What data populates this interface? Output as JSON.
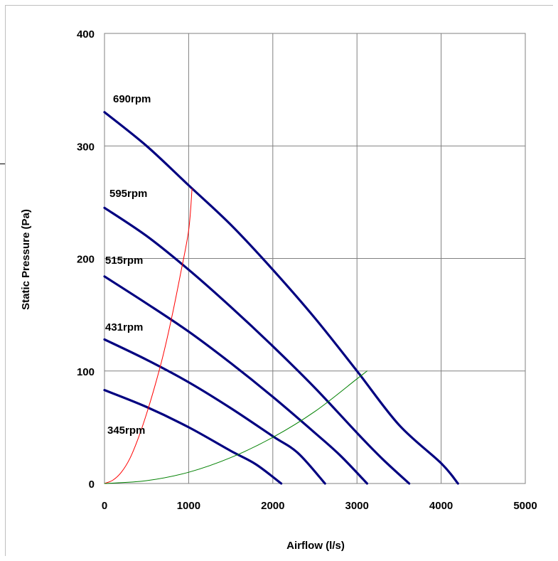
{
  "chart_data": {
    "type": "line",
    "xlabel": "Airflow (l/s)",
    "ylabel": "Static Pressure (Pa)",
    "xlim": [
      0,
      5000
    ],
    "ylim": [
      0,
      400
    ],
    "x_ticks": [
      0,
      1000,
      2000,
      3000,
      4000,
      5000
    ],
    "y_ticks": [
      0,
      100,
      200,
      300,
      400
    ],
    "grid": true,
    "legend": "none",
    "series": [
      {
        "name": "690rpm",
        "label": "690rpm",
        "color": "#000080",
        "points": [
          [
            0,
            330
          ],
          [
            500,
            300
          ],
          [
            1000,
            265
          ],
          [
            1500,
            230
          ],
          [
            2000,
            190
          ],
          [
            2500,
            147
          ],
          [
            3000,
            100
          ],
          [
            3500,
            52
          ],
          [
            4000,
            18
          ],
          [
            4200,
            0
          ]
        ]
      },
      {
        "name": "595rpm",
        "label": "595rpm",
        "color": "#000080",
        "points": [
          [
            0,
            245
          ],
          [
            500,
            220
          ],
          [
            1000,
            190
          ],
          [
            1500,
            157
          ],
          [
            2000,
            122
          ],
          [
            2500,
            85
          ],
          [
            3000,
            45
          ],
          [
            3300,
            22
          ],
          [
            3620,
            0
          ]
        ]
      },
      {
        "name": "515rpm",
        "label": "515rpm",
        "color": "#000080",
        "points": [
          [
            0,
            184
          ],
          [
            500,
            160
          ],
          [
            1000,
            135
          ],
          [
            1500,
            107
          ],
          [
            2000,
            77
          ],
          [
            2500,
            45
          ],
          [
            2800,
            25
          ],
          [
            3120,
            0
          ]
        ]
      },
      {
        "name": "431rpm",
        "label": "431rpm",
        "color": "#000080",
        "points": [
          [
            0,
            128
          ],
          [
            500,
            110
          ],
          [
            1000,
            90
          ],
          [
            1500,
            67
          ],
          [
            2000,
            42
          ],
          [
            2300,
            27
          ],
          [
            2620,
            0
          ]
        ]
      },
      {
        "name": "345rpm",
        "label": "345rpm",
        "color": "#000080",
        "points": [
          [
            0,
            83
          ],
          [
            500,
            68
          ],
          [
            1000,
            50
          ],
          [
            1500,
            29
          ],
          [
            1800,
            17
          ],
          [
            2100,
            0
          ]
        ]
      },
      {
        "name": "",
        "color": "#ff0000",
        "points": [
          [
            0,
            0
          ],
          [
            100,
            3
          ],
          [
            200,
            10
          ],
          [
            300,
            22
          ],
          [
            400,
            40
          ],
          [
            500,
            62
          ],
          [
            600,
            87
          ],
          [
            700,
            115
          ],
          [
            800,
            148
          ],
          [
            900,
            185
          ],
          [
            1000,
            225
          ],
          [
            1040,
            262
          ]
        ]
      },
      {
        "name": "",
        "color": "#008000",
        "points": [
          [
            0,
            0
          ],
          [
            500,
            2.5
          ],
          [
            1000,
            10
          ],
          [
            1500,
            23
          ],
          [
            2000,
            41
          ],
          [
            2500,
            64
          ],
          [
            3000,
            93
          ],
          [
            3120,
            100
          ]
        ]
      }
    ]
  }
}
